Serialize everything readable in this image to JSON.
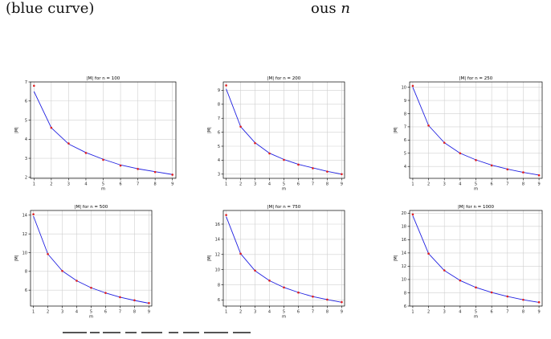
{
  "page_text": {
    "left_fragment": "(blue curve)",
    "mid_fragment_prefix": "ous",
    "mid_fragment_var": "n"
  },
  "colors": {
    "curve": "#1f1fe0",
    "points": "#e01f1f",
    "grid": "#d0d0d0",
    "axes": "#000000"
  },
  "chart_data": [
    {
      "type": "line",
      "title": "|M| for n = 100",
      "xlabel": "m",
      "ylabel": "|M|",
      "x": [
        1,
        2,
        3,
        4,
        5,
        6,
        7,
        8,
        9
      ],
      "series": [
        {
          "values": [
            6.5,
            4.6,
            3.75,
            3.3,
            2.95,
            2.65,
            2.45,
            2.3,
            2.15
          ]
        }
      ],
      "points": [
        6.8,
        4.6,
        3.78,
        3.28,
        2.92,
        2.62,
        2.44,
        2.28,
        2.14
      ],
      "xlim": [
        0.8,
        9.2
      ],
      "ylim": [
        1.95,
        7.0
      ],
      "xticks": [
        "1",
        "2",
        "3",
        "4",
        "5",
        "6",
        "7",
        "8",
        "9"
      ],
      "yticks": [
        2,
        3,
        4,
        5,
        6,
        7
      ],
      "grid": true
    },
    {
      "type": "line",
      "title": "|M| for n = 200",
      "xlabel": "m",
      "ylabel": "|M|",
      "x": [
        1,
        2,
        3,
        4,
        5,
        6,
        7,
        8,
        9
      ],
      "series": [
        {
          "values": [
            9.1,
            6.4,
            5.25,
            4.5,
            4.05,
            3.7,
            3.45,
            3.2,
            3.0
          ]
        }
      ],
      "points": [
        9.35,
        6.4,
        5.22,
        4.48,
        4.02,
        3.68,
        3.42,
        3.18,
        3.0
      ],
      "xlim": [
        0.8,
        9.2
      ],
      "ylim": [
        2.7,
        9.6
      ],
      "xticks": [
        "1",
        "2",
        "3",
        "4",
        "5",
        "6",
        "7",
        "8",
        "9"
      ],
      "yticks": [
        3,
        4,
        5,
        6,
        7,
        8,
        9
      ],
      "grid": true
    },
    {
      "type": "line",
      "title": "|M| for n = 250",
      "xlabel": "m",
      "ylabel": "|M|",
      "x": [
        1,
        2,
        3,
        4,
        5,
        6,
        7,
        8,
        9
      ],
      "series": [
        {
          "values": [
            10.0,
            7.1,
            5.8,
            5.0,
            4.5,
            4.1,
            3.8,
            3.55,
            3.35
          ]
        }
      ],
      "points": [
        10.1,
        7.1,
        5.8,
        5.0,
        4.48,
        4.08,
        3.78,
        3.55,
        3.33
      ],
      "xlim": [
        0.8,
        9.2
      ],
      "ylim": [
        3.1,
        10.4
      ],
      "xticks": [
        "1",
        "2",
        "3",
        "4",
        "5",
        "6",
        "7",
        "8",
        "9"
      ],
      "yticks": [
        4,
        5,
        6,
        7,
        8,
        9,
        10
      ],
      "grid": true
    },
    {
      "type": "line",
      "title": "|M| for n = 500",
      "xlabel": "m",
      "ylabel": "|M|",
      "x": [
        1,
        2,
        3,
        4,
        5,
        6,
        7,
        8,
        9
      ],
      "series": [
        {
          "values": [
            13.9,
            9.85,
            8.05,
            7.0,
            6.25,
            5.7,
            5.25,
            4.9,
            4.6
          ]
        }
      ],
      "points": [
        14.1,
        9.85,
        8.05,
        7.0,
        6.25,
        5.7,
        5.25,
        4.92,
        4.62
      ],
      "xlim": [
        0.8,
        9.2
      ],
      "ylim": [
        4.3,
        14.5
      ],
      "xticks": [
        "1",
        "2",
        "3",
        "4",
        "5",
        "6",
        "7",
        "8",
        "9"
      ],
      "yticks": [
        6,
        8,
        10,
        12,
        14
      ],
      "grid": true
    },
    {
      "type": "line",
      "title": "|M| for n = 750",
      "xlabel": "m",
      "ylabel": "|M|",
      "x": [
        1,
        2,
        3,
        4,
        5,
        6,
        7,
        8,
        9
      ],
      "series": [
        {
          "values": [
            17.0,
            12.1,
            9.85,
            8.55,
            7.65,
            7.0,
            6.45,
            6.05,
            5.7
          ]
        }
      ],
      "points": [
        17.2,
        12.1,
        9.88,
        8.55,
        7.65,
        6.98,
        6.45,
        6.05,
        5.72
      ],
      "xlim": [
        0.8,
        9.2
      ],
      "ylim": [
        5.2,
        17.8
      ],
      "xticks": [
        "1",
        "2",
        "3",
        "4",
        "5",
        "6",
        "7",
        "8",
        "9"
      ],
      "yticks": [
        6,
        8,
        10,
        12,
        14,
        16
      ],
      "grid": true
    },
    {
      "type": "line",
      "title": "|M| for n = 1000",
      "xlabel": "m",
      "ylabel": "|M|",
      "x": [
        1,
        2,
        3,
        4,
        5,
        6,
        7,
        8,
        9
      ],
      "series": [
        {
          "values": [
            19.6,
            13.9,
            11.35,
            9.85,
            8.8,
            8.05,
            7.45,
            6.95,
            6.55
          ]
        }
      ],
      "points": [
        19.8,
        13.9,
        11.38,
        9.85,
        8.8,
        8.05,
        7.45,
        6.95,
        6.58
      ],
      "xlim": [
        0.8,
        9.2
      ],
      "ylim": [
        6.0,
        20.4
      ],
      "xticks": [
        "1",
        "2",
        "3",
        "4",
        "5",
        "6",
        "7",
        "8",
        "9"
      ],
      "yticks": [
        6,
        8,
        10,
        12,
        14,
        16,
        18,
        20
      ],
      "grid": true
    }
  ]
}
